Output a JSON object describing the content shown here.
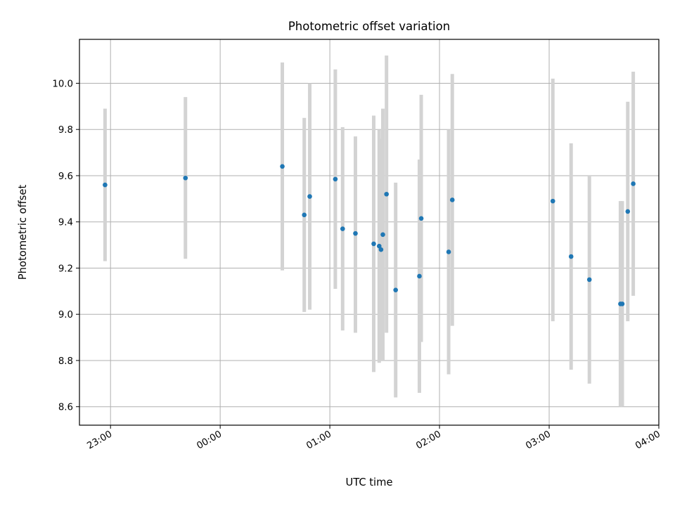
{
  "chart_data": {
    "type": "scatter",
    "title": "Photometric offset variation",
    "xlabel": "UTC time",
    "ylabel": "Photometric offset",
    "x_unit": "UTC time of day (HH:MM), spanning midnight",
    "xlim": [
      "22:43",
      "04:00"
    ],
    "ylim": [
      8.52,
      10.19
    ],
    "grid": true,
    "x_ticks": [
      "23:00",
      "00:00",
      "01:00",
      "02:00",
      "03:00",
      "04:00"
    ],
    "y_ticks": [
      "8.6",
      "8.8",
      "9.0",
      "9.2",
      "9.4",
      "9.6",
      "9.8",
      "10.0"
    ],
    "error_bar_color": "#d3d3d3",
    "point_color": "#1f77b4",
    "points": [
      {
        "x": "22:57",
        "y": 9.56,
        "ylow": 9.23,
        "yhigh": 9.89
      },
      {
        "x": "23:41",
        "y": 9.59,
        "ylow": 9.24,
        "yhigh": 9.94
      },
      {
        "x": "00:34",
        "y": 9.64,
        "ylow": 9.19,
        "yhigh": 10.09
      },
      {
        "x": "00:46",
        "y": 9.43,
        "ylow": 9.01,
        "yhigh": 9.85
      },
      {
        "x": "00:49",
        "y": 9.51,
        "ylow": 9.02,
        "yhigh": 10.0
      },
      {
        "x": "01:03",
        "y": 9.585,
        "ylow": 9.11,
        "yhigh": 10.06
      },
      {
        "x": "01:07",
        "y": 9.37,
        "ylow": 8.93,
        "yhigh": 9.81
      },
      {
        "x": "01:14",
        "y": 9.35,
        "ylow": 8.92,
        "yhigh": 9.77
      },
      {
        "x": "01:24",
        "y": 9.305,
        "ylow": 8.75,
        "yhigh": 9.86
      },
      {
        "x": "01:27",
        "y": 9.295,
        "ylow": 8.79,
        "yhigh": 9.8
      },
      {
        "x": "01:28",
        "y": 9.28,
        "ylow": 8.8,
        "yhigh": 9.76
      },
      {
        "x": "01:29",
        "y": 9.345,
        "ylow": 8.8,
        "yhigh": 9.89
      },
      {
        "x": "01:31",
        "y": 9.52,
        "ylow": 8.92,
        "yhigh": 10.12
      },
      {
        "x": "01:36",
        "y": 9.105,
        "ylow": 8.64,
        "yhigh": 9.57
      },
      {
        "x": "01:49",
        "y": 9.165,
        "ylow": 8.66,
        "yhigh": 9.67
      },
      {
        "x": "01:50",
        "y": 9.415,
        "ylow": 8.88,
        "yhigh": 9.95
      },
      {
        "x": "02:05",
        "y": 9.27,
        "ylow": 8.74,
        "yhigh": 9.8
      },
      {
        "x": "02:07",
        "y": 9.495,
        "ylow": 8.95,
        "yhigh": 10.04
      },
      {
        "x": "03:02",
        "y": 9.49,
        "ylow": 8.97,
        "yhigh": 10.02
      },
      {
        "x": "03:12",
        "y": 9.25,
        "ylow": 8.76,
        "yhigh": 9.74
      },
      {
        "x": "03:22",
        "y": 9.15,
        "ylow": 8.7,
        "yhigh": 9.6
      },
      {
        "x": "03:39",
        "y": 9.045,
        "ylow": 8.6,
        "yhigh": 9.49
      },
      {
        "x": "03:40",
        "y": 9.045,
        "ylow": 8.6,
        "yhigh": 9.49
      },
      {
        "x": "03:43",
        "y": 9.445,
        "ylow": 8.97,
        "yhigh": 9.92
      },
      {
        "x": "03:46",
        "y": 9.565,
        "ylow": 9.08,
        "yhigh": 10.05
      }
    ]
  }
}
